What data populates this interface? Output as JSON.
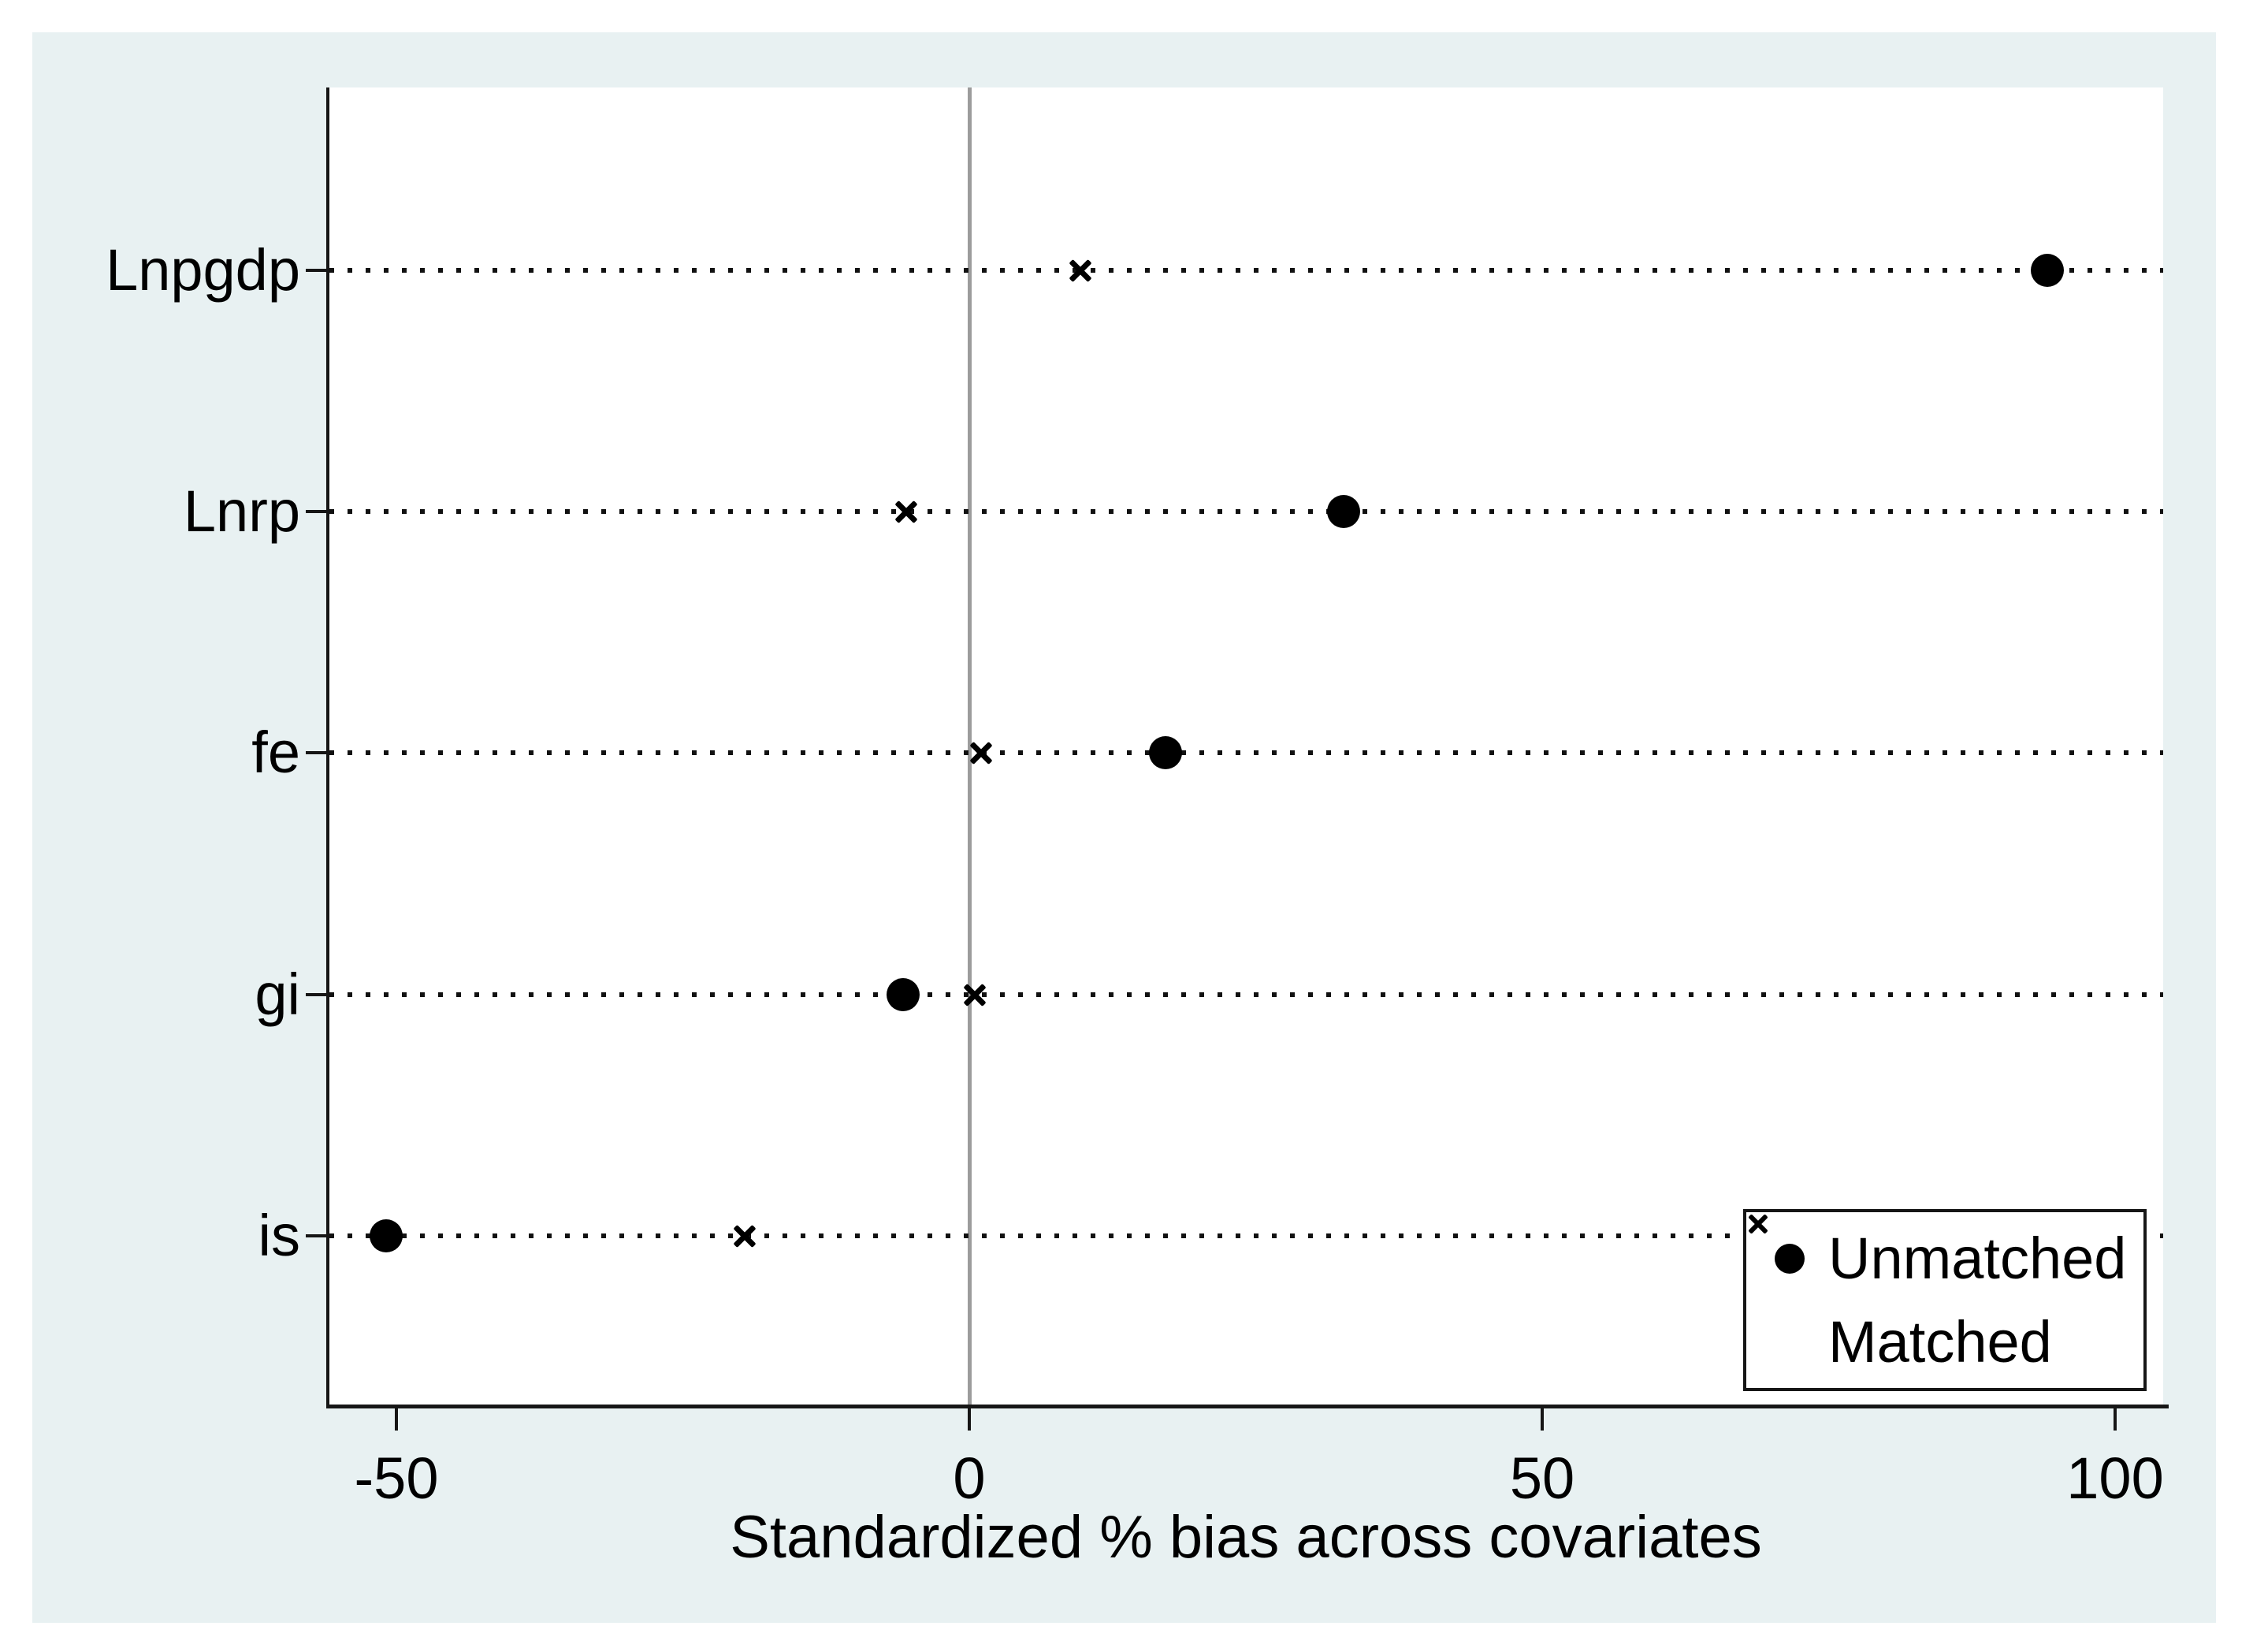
{
  "chart_data": {
    "type": "scatter",
    "title": "",
    "xlabel": "Standardized % bias across covariates",
    "ylabel": "",
    "categories": [
      "Lnpgdp",
      "Lnrp",
      "fe",
      "gi",
      "is"
    ],
    "series": [
      {
        "name": "Unmatched",
        "marker": "filled-circle",
        "values": [
          94.1,
          32.7,
          17.1,
          -5.8,
          -50.9
        ]
      },
      {
        "name": "Matched",
        "marker": "x-cross",
        "values": [
          9.7,
          -5.5,
          1.0,
          0.5,
          -19.6
        ]
      }
    ],
    "x_ticks": [
      -50,
      0,
      50,
      100
    ],
    "xlim": [
      -56,
      104
    ],
    "reference_line_x": 0,
    "grid": "dotted horizontal line per category",
    "legend_position": "inside bottom-right"
  },
  "colors": {
    "figure_background": "#e8f1f2",
    "plot_background": "#ffffff",
    "marker_color": "#000000",
    "reference_line_color": "#9c9c9c",
    "axis_color": "#161616"
  }
}
